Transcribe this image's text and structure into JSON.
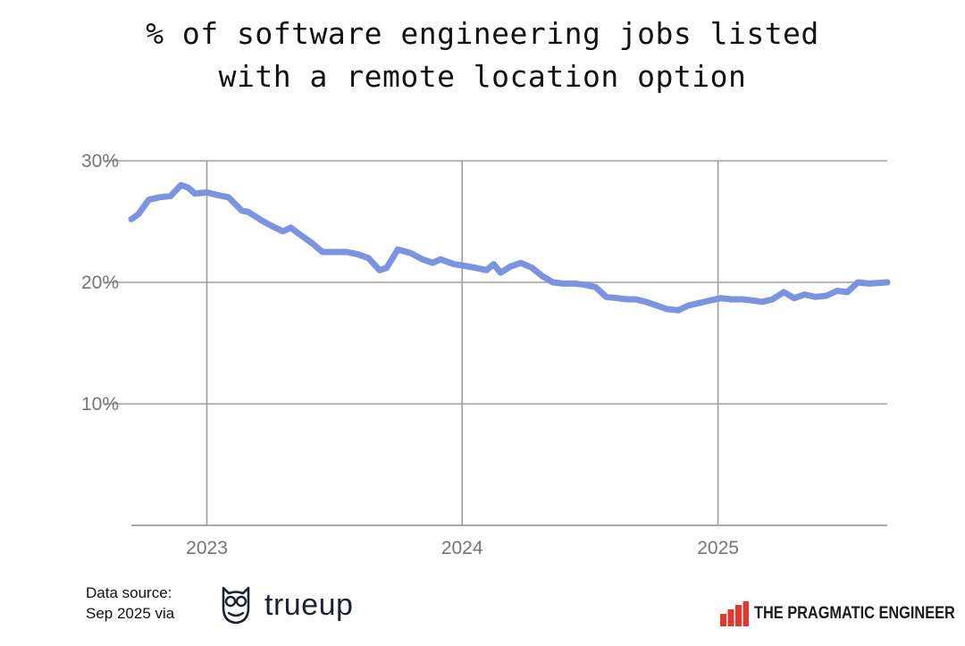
{
  "title_lines": [
    "% of software engineering jobs listed",
    "with a remote location option"
  ],
  "footer": {
    "source_line1": "Data source:",
    "source_line2": "Sep 2025 via",
    "source_brand": "trueup",
    "publisher": "THE PRAGMATIC ENGINEER"
  },
  "colors": {
    "line": "#7b94df",
    "grid": "#9e9e9e",
    "tick": "#757575",
    "publisher_red": "#e03a2f"
  },
  "icons": {
    "source_logo": "owl-icon",
    "publisher_logo": "bar-chart-icon"
  },
  "chart_data": {
    "type": "line",
    "title": "% of software engineering jobs listed with a remote location option",
    "xlabel": "",
    "ylabel": "",
    "x_ticks": [
      "2023",
      "2024",
      "2025"
    ],
    "y_ticks": [
      "10%",
      "20%",
      "30%"
    ],
    "ylim": [
      0,
      30
    ],
    "xlim": [
      "2022-09-15",
      "2025-08-31"
    ],
    "grid": true,
    "series": [
      {
        "x": [
          "2022-09-15",
          "2022-09-25",
          "2022-10-10",
          "2022-10-25",
          "2022-11-10",
          "2022-11-25",
          "2022-12-05",
          "2022-12-15",
          "2023-01-01",
          "2023-01-15",
          "2023-02-01",
          "2023-02-20",
          "2023-03-01",
          "2023-03-20",
          "2023-04-05",
          "2023-04-20",
          "2023-05-01",
          "2023-05-15",
          "2023-06-01",
          "2023-06-15",
          "2023-07-01",
          "2023-07-20",
          "2023-08-05",
          "2023-08-20",
          "2023-09-05",
          "2023-09-15",
          "2023-10-01",
          "2023-10-20",
          "2023-11-05",
          "2023-11-20",
          "2023-12-01",
          "2023-12-20",
          "2024-01-01",
          "2024-01-20",
          "2024-02-05",
          "2024-02-15",
          "2024-02-25",
          "2024-03-10",
          "2024-03-25",
          "2024-04-10",
          "2024-04-25",
          "2024-05-10",
          "2024-05-25",
          "2024-06-10",
          "2024-06-25",
          "2024-07-10",
          "2024-07-25",
          "2024-08-10",
          "2024-08-25",
          "2024-09-05",
          "2024-09-20",
          "2024-10-05",
          "2024-10-20",
          "2024-11-05",
          "2024-11-20",
          "2024-12-05",
          "2024-12-20",
          "2025-01-05",
          "2025-01-20",
          "2025-02-05",
          "2025-02-20",
          "2025-03-05",
          "2025-03-20",
          "2025-04-05",
          "2025-04-20",
          "2025-05-05",
          "2025-05-20",
          "2025-06-05",
          "2025-06-20",
          "2025-07-05",
          "2025-07-20",
          "2025-08-05",
          "2025-08-31"
        ],
        "y": [
          25.2,
          25.6,
          26.8,
          27.0,
          27.1,
          28.0,
          27.8,
          27.3,
          27.4,
          27.2,
          27.0,
          25.9,
          25.8,
          25.1,
          24.6,
          24.2,
          24.5,
          23.9,
          23.2,
          22.5,
          22.5,
          22.5,
          22.3,
          22.0,
          21.0,
          21.2,
          22.7,
          22.4,
          21.9,
          21.6,
          21.9,
          21.5,
          21.4,
          21.2,
          21.0,
          21.5,
          20.8,
          21.3,
          21.6,
          21.2,
          20.5,
          20.0,
          19.9,
          19.9,
          19.8,
          19.6,
          18.8,
          18.7,
          18.6,
          18.6,
          18.4,
          18.1,
          17.8,
          17.7,
          18.1,
          18.3,
          18.5,
          18.7,
          18.6,
          18.6,
          18.5,
          18.4,
          18.6,
          19.2,
          18.7,
          19.0,
          18.8,
          18.9,
          19.3,
          19.2,
          20.0,
          19.9,
          20.0
        ]
      }
    ]
  }
}
